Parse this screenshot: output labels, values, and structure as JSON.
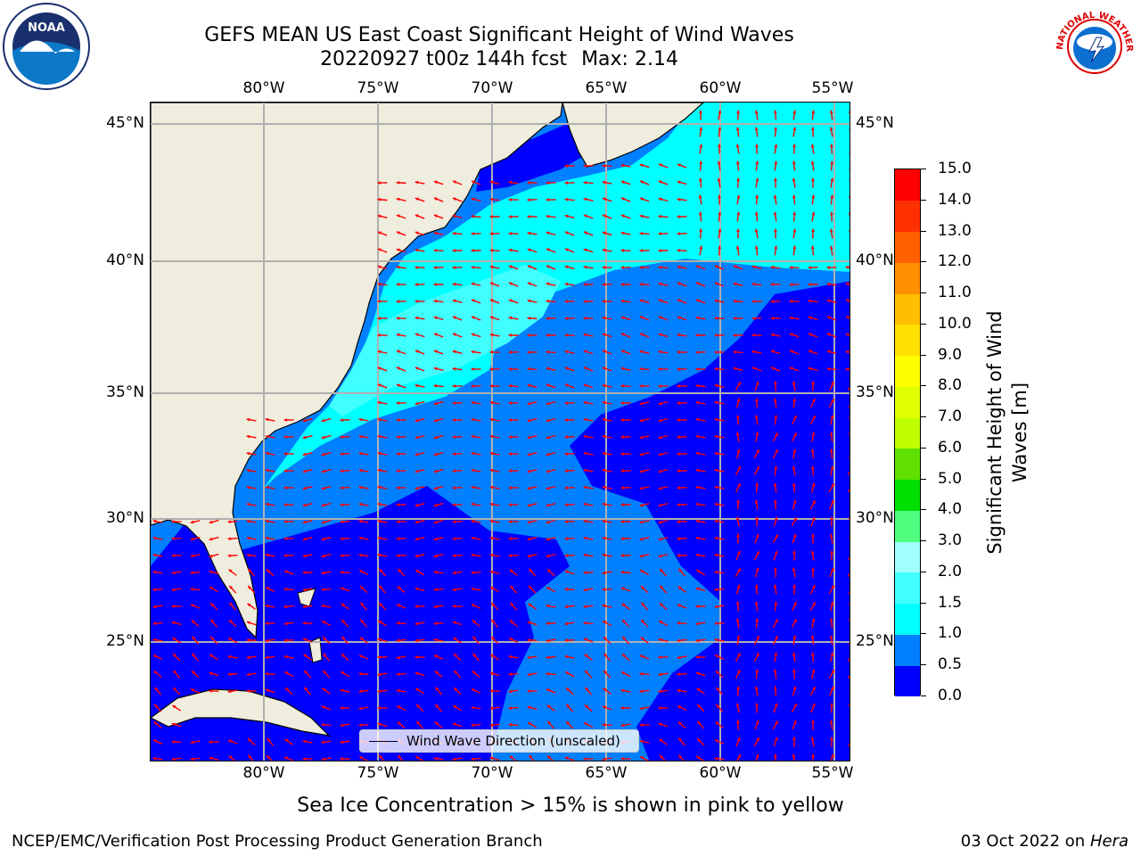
{
  "title": {
    "line1": "GEFS MEAN US East Coast Significant Height of Wind Waves",
    "line2_prefix": "20220927 t00z 144h fcst",
    "line2_max": "Max: 2.14"
  },
  "logos": {
    "left": "noaa-logo",
    "right": "nws-logo",
    "left_text": "NOAA",
    "right_text": "NATIONAL WEATHER SERVICE"
  },
  "map": {
    "lon_ticks": [
      "80°W",
      "75°W",
      "70°W",
      "65°W",
      "60°W",
      "55°W"
    ],
    "lat_ticks": [
      "45°N",
      "40°N",
      "35°N",
      "30°N",
      "25°N"
    ],
    "colors": {
      "land": "#efedde",
      "coast": "#000000",
      "grid": "#b0b0b0",
      "arrow": "#ff0000"
    }
  },
  "legend": {
    "label": "Wind Wave Direction (unscaled)"
  },
  "colorbar": {
    "label": "Significant Height of Wind Waves [m]",
    "ticks": [
      "0.0",
      "0.5",
      "1.0",
      "1.5",
      "2.0",
      "3.0",
      "4.0",
      "5.0",
      "6.0",
      "7.0",
      "8.0",
      "9.0",
      "10.0",
      "11.0",
      "12.0",
      "13.0",
      "14.0",
      "15.0"
    ],
    "colors": [
      "#0000ff",
      "#0080ff",
      "#00ffff",
      "#40ffff",
      "#a0ffff",
      "#50ff80",
      "#00e000",
      "#60e000",
      "#c0ff00",
      "#e0ff00",
      "#ffff00",
      "#ffe000",
      "#ffbf00",
      "#ff9000",
      "#ff6000",
      "#ff3000",
      "#ff0000"
    ]
  },
  "note": "Sea Ice Concentration > 15% is shown in pink to yellow",
  "footer": {
    "left": "NCEP/EMC/Verification Post Processing Product Generation Branch",
    "date": "03 Oct 2022 on",
    "host": "Hera"
  }
}
